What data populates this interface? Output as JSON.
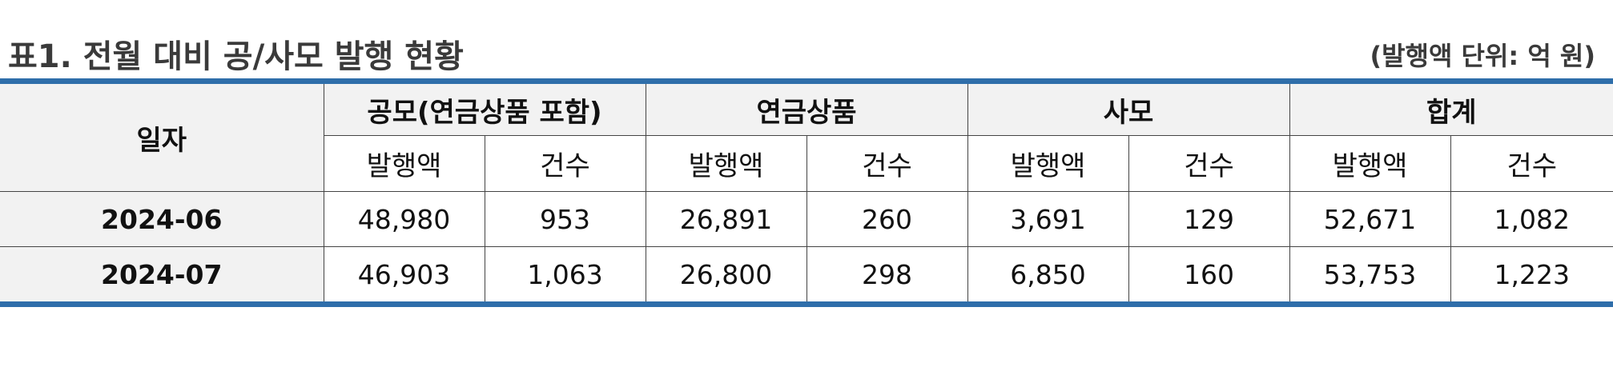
{
  "header": {
    "title": "표1. 전월 대비 공/사모 발행 현황",
    "unit": "(발행액 단위: 억 원)"
  },
  "table": {
    "date_header": "일자",
    "groups": [
      "공모(연금상품 포함)",
      "연금상품",
      "사모",
      "합계"
    ],
    "subheaders": [
      "발행액",
      "건수",
      "발행액",
      "건수",
      "발행액",
      "건수",
      "발행액",
      "건수"
    ],
    "rows": [
      {
        "date": "2024-06",
        "values": [
          "48,980",
          "953",
          "26,891",
          "260",
          "3,691",
          "129",
          "52,671",
          "1,082"
        ]
      },
      {
        "date": "2024-07",
        "values": [
          "46,903",
          "1,063",
          "26,800",
          "298",
          "6,850",
          "160",
          "53,753",
          "1,223"
        ]
      }
    ]
  },
  "colors": {
    "accent_border": "#2f6eaa",
    "header_fill": "#f2f2f2"
  }
}
